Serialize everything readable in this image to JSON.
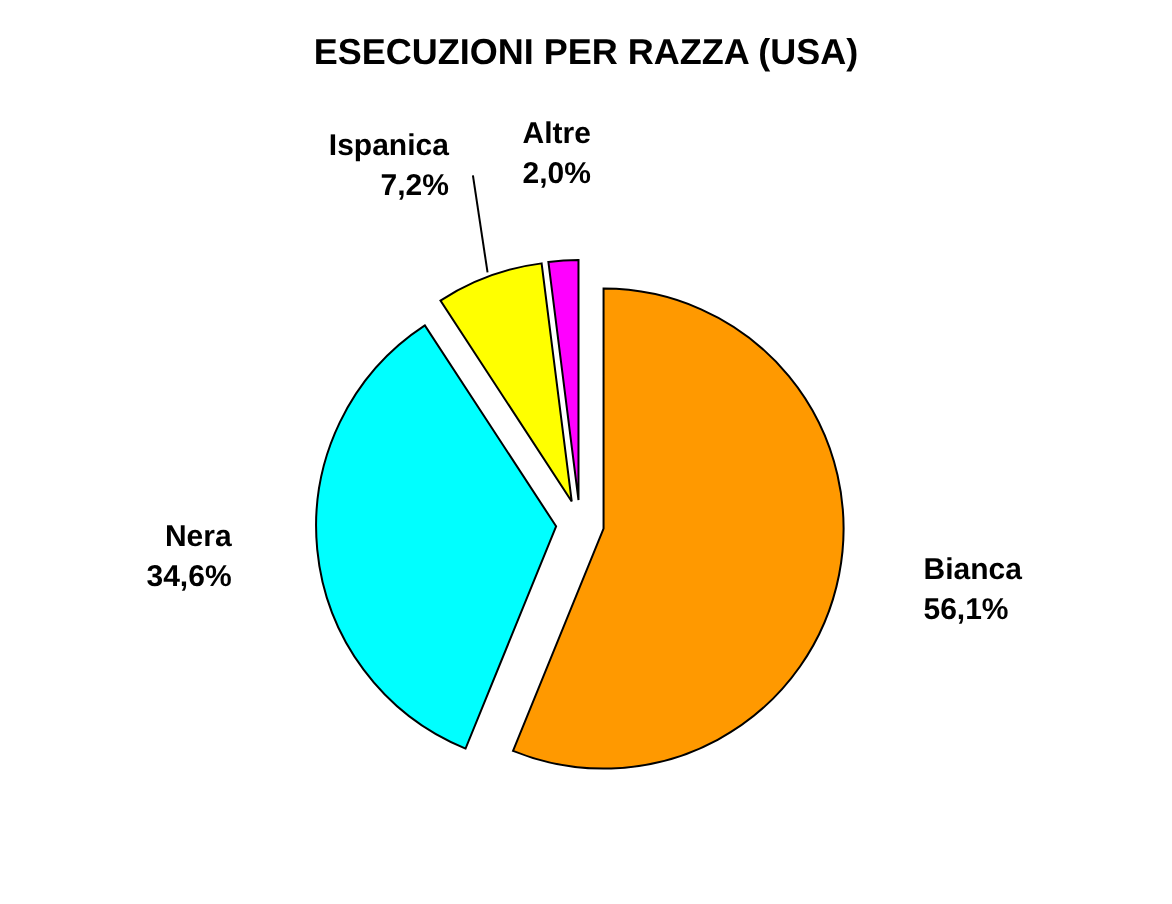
{
  "chart_data": {
    "type": "pie",
    "title": "ESECUZIONI PER RAZZA (USA)",
    "categories": [
      "Bianca",
      "Nera",
      "Ispanica",
      "Altre"
    ],
    "values": [
      56.1,
      34.6,
      7.2,
      2.0
    ],
    "value_labels": [
      "56,1%",
      "34,6%",
      "7,2%",
      "2,0%"
    ],
    "colors": [
      "#ff9900",
      "#00ffff",
      "#ffff00",
      "#ff00ff"
    ],
    "legend": false
  }
}
